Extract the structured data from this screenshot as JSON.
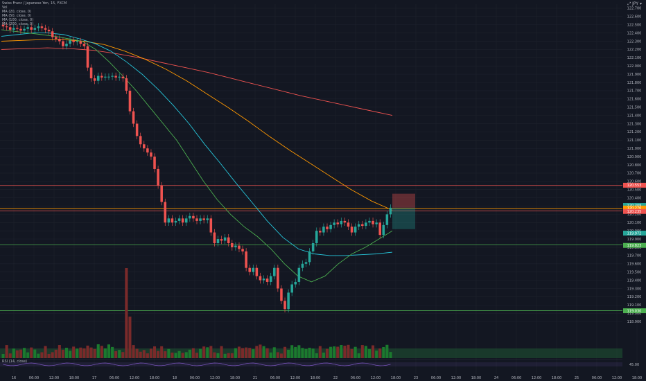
{
  "header": {
    "symbol_title": "Swiss Franc / Japanese Yen, 15, FXCM",
    "legend_items": [
      "Vol",
      "MA (20, close, 0)",
      "MA (50, close, 0)",
      "MA (100, close, 0)",
      "MA (200, close, 0)"
    ],
    "top_right": "⤢ JPY ▾"
  },
  "indicator": {
    "rsi_label": "RSI (14, close)",
    "rsi_value": "45.00"
  },
  "colors": {
    "background": "#131722",
    "grid": "#1e222d",
    "up": "#26a69a",
    "down": "#ef5350",
    "vol_up": "#1b7a2e",
    "vol_down": "#7a2a2a",
    "ma20": "#4caf50",
    "ma50": "#26c6da",
    "ma100": "#ff9800",
    "ma200": "#ef5350",
    "rsi": "#7e57c2"
  },
  "chart_data": {
    "type": "candlestick",
    "symbol": "CHFJPY",
    "timeframe": "15",
    "x_tick_labels": [
      "16",
      "06:00",
      "12:00",
      "18:00",
      "17",
      "06:00",
      "12:00",
      "18:00",
      "18",
      "06:00",
      "12:00",
      "18:00",
      "21",
      "06:00",
      "12:00",
      "18:00",
      "22",
      "06:00",
      "12:00",
      "18:00",
      "23",
      "06:00",
      "12:00",
      "18:00",
      "24",
      "06:00",
      "12:00",
      "18:00",
      "25",
      "06:00",
      "12:00",
      "18:00"
    ],
    "y_tick_labels": [
      "122.700",
      "122.600",
      "122.500",
      "122.400",
      "122.300",
      "122.200",
      "122.100",
      "122.000",
      "121.900",
      "121.800",
      "121.700",
      "121.600",
      "121.500",
      "121.400",
      "121.300",
      "121.200",
      "121.100",
      "121.000",
      "120.900",
      "120.800",
      "120.700",
      "120.600",
      "120.500",
      "120.400",
      "120.300",
      "120.200",
      "120.100",
      "120.000",
      "119.900",
      "119.800",
      "119.700",
      "119.600",
      "119.500",
      "119.400",
      "119.300",
      "119.200",
      "119.100",
      "119.000",
      "118.900"
    ],
    "ylim": [
      118.85,
      122.75
    ],
    "closes": [
      122.48,
      122.47,
      122.44,
      122.46,
      122.45,
      122.43,
      122.45,
      122.47,
      122.44,
      122.46,
      122.48,
      122.46,
      122.44,
      122.42,
      122.35,
      122.33,
      122.3,
      122.24,
      122.27,
      122.31,
      122.29,
      122.3,
      122.27,
      122.24,
      121.98,
      121.85,
      121.82,
      121.88,
      121.86,
      121.87,
      121.87,
      121.88,
      121.86,
      121.87,
      121.85,
      121.7,
      121.45,
      121.3,
      121.15,
      121.05,
      121.0,
      120.95,
      120.9,
      120.75,
      120.55,
      120.35,
      120.1,
      120.15,
      120.1,
      120.12,
      120.15,
      120.1,
      120.15,
      120.18,
      120.15,
      120.12,
      120.15,
      120.13,
      120.15,
      119.98,
      119.85,
      119.9,
      119.88,
      119.92,
      119.85,
      119.8,
      119.82,
      119.78,
      119.75,
      119.55,
      119.5,
      119.55,
      119.45,
      119.4,
      119.42,
      119.38,
      119.45,
      119.55,
      119.3,
      119.15,
      119.05,
      119.25,
      119.35,
      119.38,
      119.55,
      119.6,
      119.62,
      119.75,
      119.85,
      120.0,
      119.98,
      120.05,
      120.02,
      120.07,
      120.1,
      120.08,
      120.12,
      120.1,
      120.05,
      119.98,
      120.05,
      120.08,
      120.06,
      120.1,
      120.12,
      120.08,
      120.1,
      119.95,
      120.07,
      120.2,
      120.28
    ],
    "ma20": [
      122.44,
      122.42,
      122.4,
      122.38,
      122.36,
      122.33,
      122.3,
      122.2,
      122.05,
      121.88,
      121.7,
      121.5,
      121.3,
      121.1,
      120.85,
      120.6,
      120.38,
      120.2,
      120.05,
      119.93,
      119.78,
      119.6,
      119.45,
      119.38,
      119.45,
      119.6,
      119.72,
      119.8,
      119.9,
      120.0
    ],
    "ma50": [
      122.36,
      122.38,
      122.4,
      122.4,
      122.38,
      122.33,
      122.27,
      122.18,
      122.05,
      121.9,
      121.72,
      121.52,
      121.3,
      121.05,
      120.82,
      120.58,
      120.35,
      120.12,
      119.92,
      119.78,
      119.72,
      119.7,
      119.7,
      119.71,
      119.72,
      119.74
    ],
    "ma100": [
      122.3,
      122.31,
      122.32,
      122.32,
      122.3,
      122.26,
      122.18,
      122.08,
      121.96,
      121.82,
      121.66,
      121.5,
      121.33,
      121.15,
      120.98,
      120.82,
      120.66,
      120.5,
      120.36,
      120.25
    ],
    "ma200": [
      122.2,
      122.21,
      122.22,
      122.21,
      122.19,
      122.15,
      122.1,
      122.04,
      121.98,
      121.92,
      121.85,
      121.78,
      121.71,
      121.64,
      121.58,
      121.52,
      121.46,
      121.4
    ],
    "horizontal_levels": [
      {
        "price": 120.55,
        "color": "#ef5350"
      },
      {
        "price": 120.27,
        "color": "#ff9800"
      },
      {
        "price": 120.24,
        "color": "#ef5350"
      },
      {
        "price": 119.83,
        "color": "#4caf50"
      },
      {
        "price": 119.03,
        "color": "#4caf50"
      }
    ],
    "position_box": {
      "entry": 120.28,
      "stop": 120.45,
      "target": 120.02
    },
    "price_labels": [
      "120.553",
      "120.308",
      "120.276",
      "120.235",
      "119.972",
      "119.823",
      "119.030"
    ],
    "volume_note": "volume bars at bottom; one spike near x of day 17 06:00"
  }
}
